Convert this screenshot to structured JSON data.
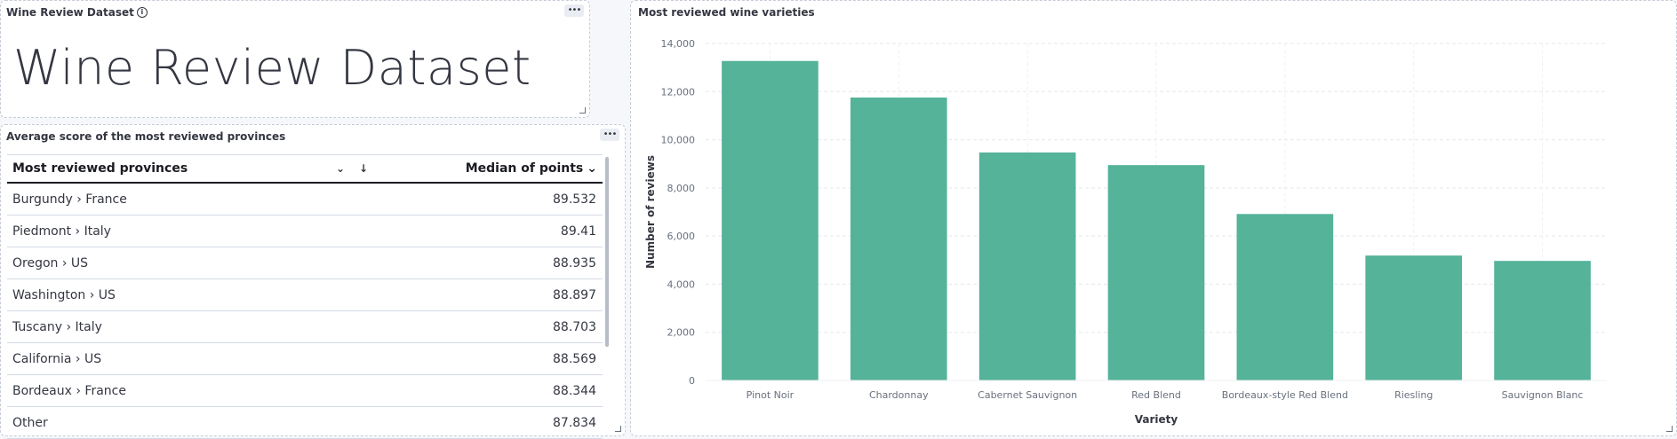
{
  "markdown_panel": {
    "title": "Wine Review Dataset",
    "heading": "Wine Review Dataset",
    "menu_icon": "ellipsis-icon",
    "info_icon": "info-icon"
  },
  "table_panel": {
    "title": "Average score of the most reviewed provinces",
    "columns": [
      "Most reviewed provinces",
      "Median of points"
    ],
    "rows": [
      {
        "province": "Burgundy › France",
        "value": "89.532"
      },
      {
        "province": "Piedmont › Italy",
        "value": "89.41"
      },
      {
        "province": "Oregon › US",
        "value": "88.935"
      },
      {
        "province": "Washington › US",
        "value": "88.897"
      },
      {
        "province": "Tuscany › Italy",
        "value": "88.703"
      },
      {
        "province": "California › US",
        "value": "88.569"
      },
      {
        "province": "Bordeaux › France",
        "value": "88.344"
      },
      {
        "province": "Other",
        "value": "87.834"
      }
    ]
  },
  "chart_panel": {
    "title": "Most reviewed wine varieties"
  },
  "chart_data": {
    "type": "bar",
    "categories": [
      "Pinot Noir",
      "Chardonnay",
      "Cabernet Sauvignon",
      "Red Blend",
      "Bordeaux-style Red Blend",
      "Riesling",
      "Sauvignon Blanc"
    ],
    "values": [
      13272,
      11753,
      9472,
      8946,
      6915,
      5189,
      4967
    ],
    "xlabel": "Variety",
    "ylabel": "Number of reviews",
    "ylim": [
      0,
      14000
    ],
    "yticks": [
      "0",
      "2,000",
      "4,000",
      "6,000",
      "8,000",
      "10,000",
      "12,000",
      "14,000"
    ],
    "bar_color": "#54b399",
    "grid": true
  }
}
